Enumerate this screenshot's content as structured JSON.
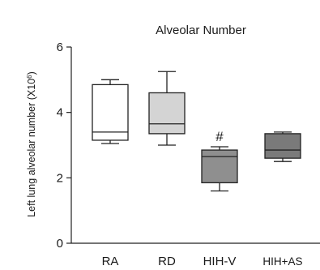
{
  "chart_data": {
    "type": "boxplot",
    "title": "Alveolar Number",
    "ylabel_base": "Left lung alveolar number (X10",
    "ylabel_sup": "6",
    "ylabel_close": ")",
    "xlabel": "",
    "ylim": [
      0,
      6
    ],
    "yticks": [
      0,
      2,
      4,
      6
    ],
    "grid": false,
    "legend": "none",
    "groups": [
      {
        "label": "RA",
        "min": 3.05,
        "q1": 3.15,
        "median": 3.4,
        "q3": 4.85,
        "max": 5.0,
        "fill": "#ffffff"
      },
      {
        "label": "RD",
        "min": 3.0,
        "q1": 3.35,
        "median": 3.65,
        "q3": 4.6,
        "max": 5.25,
        "fill": "#d4d4d4"
      },
      {
        "label": "HIH-V",
        "min": 1.6,
        "q1": 1.85,
        "median": 2.65,
        "q3": 2.85,
        "max": 2.95,
        "fill": "#8f8f8f",
        "annotation": "#"
      },
      {
        "label": "HIH+AS",
        "min": 2.5,
        "q1": 2.6,
        "median": 2.85,
        "q3": 3.35,
        "max": 3.4,
        "fill": "#7a7a7a"
      }
    ]
  }
}
